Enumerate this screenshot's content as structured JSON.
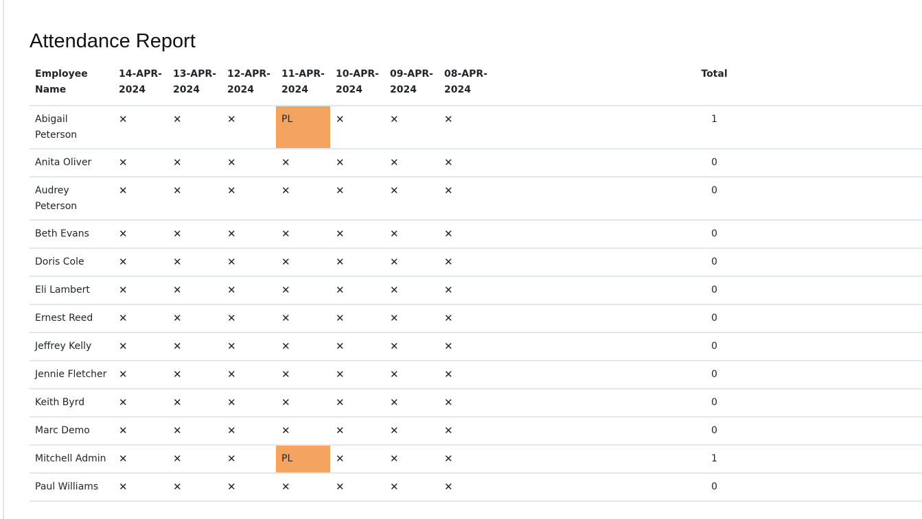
{
  "title": "Attendance Report",
  "columns": {
    "name": "Employee Name",
    "dates": [
      "14-APR-2024",
      "13-APR-2024",
      "12-APR-2024",
      "11-APR-2024",
      "10-APR-2024",
      "09-APR-2024",
      "08-APR-2024"
    ],
    "total": "Total"
  },
  "absent_symbol": "✕",
  "leave_color": "#f4a460",
  "rows": [
    {
      "name": "Abigail Peterson",
      "cells": [
        "",
        "",
        "",
        "PL",
        "",
        "",
        ""
      ],
      "total": "1"
    },
    {
      "name": "Anita Oliver",
      "cells": [
        "",
        "",
        "",
        "",
        "",
        "",
        ""
      ],
      "total": "0"
    },
    {
      "name": "Audrey Peterson",
      "cells": [
        "",
        "",
        "",
        "",
        "",
        "",
        ""
      ],
      "total": "0"
    },
    {
      "name": "Beth Evans",
      "cells": [
        "",
        "",
        "",
        "",
        "",
        "",
        ""
      ],
      "total": "0"
    },
    {
      "name": "Doris Cole",
      "cells": [
        "",
        "",
        "",
        "",
        "",
        "",
        ""
      ],
      "total": "0"
    },
    {
      "name": "Eli Lambert",
      "cells": [
        "",
        "",
        "",
        "",
        "",
        "",
        ""
      ],
      "total": "0"
    },
    {
      "name": "Ernest Reed",
      "cells": [
        "",
        "",
        "",
        "",
        "",
        "",
        ""
      ],
      "total": "0"
    },
    {
      "name": "Jeffrey Kelly",
      "cells": [
        "",
        "",
        "",
        "",
        "",
        "",
        ""
      ],
      "total": "0"
    },
    {
      "name": "Jennie Fletcher",
      "cells": [
        "",
        "",
        "",
        "",
        "",
        "",
        ""
      ],
      "total": "0"
    },
    {
      "name": "Keith Byrd",
      "cells": [
        "",
        "",
        "",
        "",
        "",
        "",
        ""
      ],
      "total": "0"
    },
    {
      "name": "Marc Demo",
      "cells": [
        "",
        "",
        "",
        "",
        "",
        "",
        ""
      ],
      "total": "0"
    },
    {
      "name": "Mitchell Admin",
      "cells": [
        "",
        "",
        "",
        "PL",
        "",
        "",
        ""
      ],
      "total": "1"
    },
    {
      "name": "Paul Williams",
      "cells": [
        "",
        "",
        "",
        "",
        "",
        "",
        ""
      ],
      "total": "0"
    }
  ]
}
